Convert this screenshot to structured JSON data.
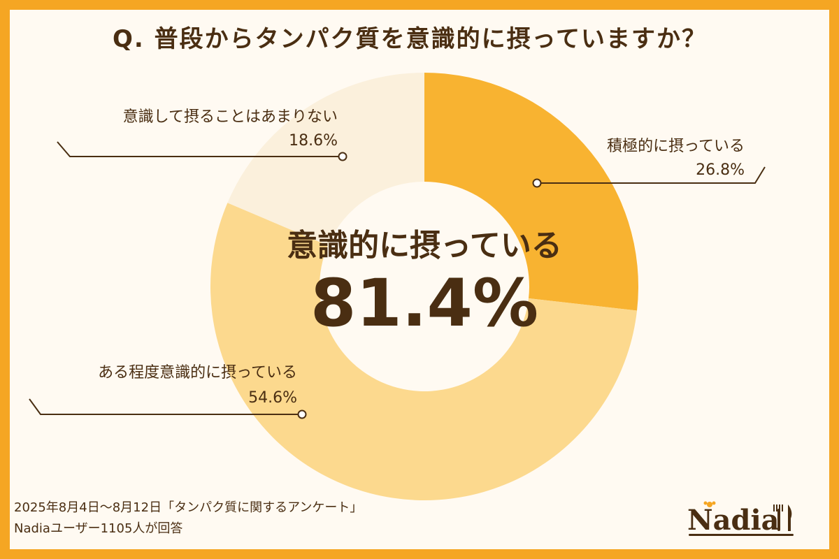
{
  "title": "Q. 普段からタンパク質を意識的に摂っていますか？",
  "colors": {
    "frame": "#f5a623",
    "text": "#4a2e12",
    "slice_active": "#f8b331",
    "slice_somewhat": "#fcd98e",
    "slice_rarely": "#fbf0dc"
  },
  "center": {
    "label": "意識的に摂っている",
    "value": "81.4%"
  },
  "footer": {
    "line1": "2025年8月4日～8月12日「タンパク質に関するアンケート」",
    "line2": "Nadiaユーザー1105人が回答"
  },
  "logo": {
    "text": "Nadia",
    "icon": "fork-knife-flower-icon"
  },
  "chart_data": {
    "type": "pie",
    "donut": true,
    "title": "Q. 普段からタンパク質を意識的に摂っていますか？",
    "categories": [
      "積極的に摂っている",
      "ある程度意識的に摂っている",
      "意識して摂ることはあまりない"
    ],
    "values": [
      26.8,
      54.6,
      18.6
    ],
    "value_labels": [
      "26.8%",
      "54.6%",
      "18.6%"
    ],
    "colors": [
      "#f8b331",
      "#fcd98e",
      "#fbf0dc"
    ],
    "start": "12 o'clock",
    "direction": "clockwise",
    "center_annotation": "意識的に摂っている 81.4%"
  }
}
